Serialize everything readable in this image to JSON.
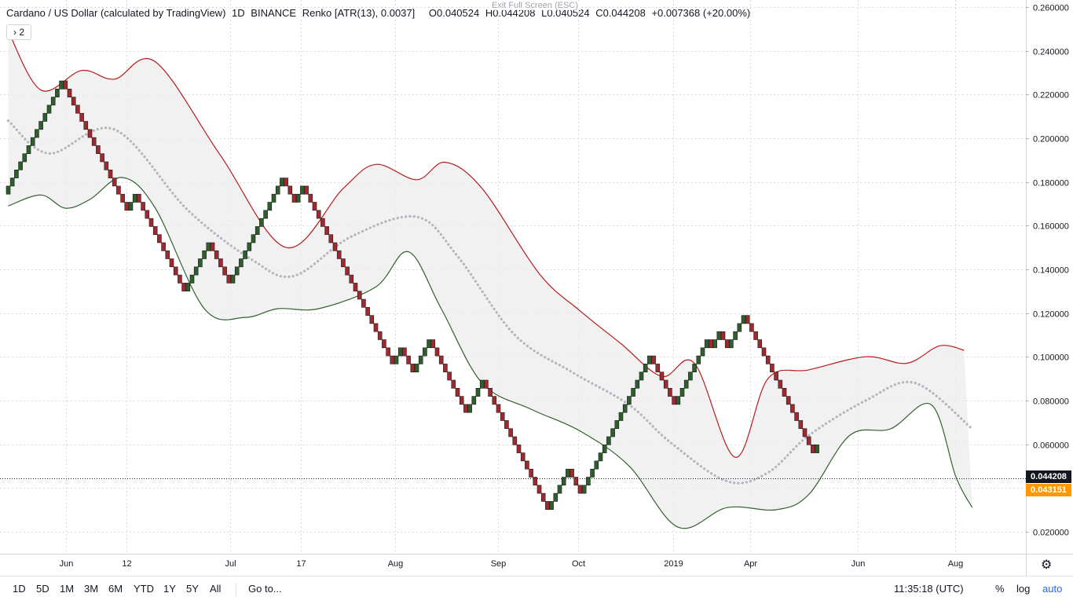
{
  "header": {
    "symbol": "Cardano / US Dollar (calculated by TradingView)",
    "interval": "1D",
    "exchange": "BINANCE",
    "chart_style": "Renko [ATR(13), 0.0037]",
    "open": "O0.040524",
    "high": "H0.044208",
    "low": "L0.040524",
    "close": "C0.044208",
    "change": "+0.007368 (+20.00%)",
    "fullscreen_hint": "Exit Full Screen (ESC)",
    "collapse_label": "› 2"
  },
  "bottom_toolbar": {
    "timeframes": [
      "1D",
      "5D",
      "1M",
      "3M",
      "6M",
      "YTD",
      "1Y",
      "5Y",
      "All"
    ],
    "goto_label": "Go to...",
    "clock": "11:35:18 (UTC)",
    "percent_label": "%",
    "log_label": "log",
    "auto_label": "auto"
  },
  "price_tags": {
    "last": "0.044208",
    "secondary": "0.043151"
  },
  "colors": {
    "up_brick": "#2e5e2c",
    "down_brick": "#a0282f",
    "upper_band": "#b71c1c",
    "lower_band": "#33602e",
    "basis_line": "#b2b5be",
    "band_fill": "#ececec",
    "last_price_tag": "#131722",
    "secondary_tag": "#ff9800",
    "accent": "#2962ff"
  },
  "chart_data": {
    "type": "renko",
    "brick_size": 0.0037,
    "ylim": [
      0.012,
      0.26
    ],
    "grid": true,
    "y_ticks": [
      "0.260000",
      "0.240000",
      "0.220000",
      "0.200000",
      "0.180000",
      "0.160000",
      "0.140000",
      "0.120000",
      "0.100000",
      "0.080000",
      "0.060000",
      "0.040000",
      "0.020000"
    ],
    "x_ticks": [
      "Jun",
      "12",
      "Jul",
      "17",
      "Aug",
      "Sep",
      "Oct",
      "2019",
      "Apr",
      "Jun",
      "Aug"
    ],
    "bricks_start": 0.1744,
    "brick_moves": [
      1,
      1,
      1,
      1,
      1,
      1,
      1,
      1,
      1,
      1,
      1,
      1,
      1,
      1,
      -1,
      -1,
      -1,
      -1,
      -1,
      -1,
      -1,
      -1,
      -1,
      -1,
      -1,
      -1,
      -1,
      -1,
      -1,
      -1,
      1,
      1,
      -1,
      -1,
      -1,
      -1,
      -1,
      -1,
      -1,
      -1,
      -1,
      -1,
      -1,
      -1,
      1,
      1,
      1,
      1,
      1,
      1,
      -1,
      -1,
      -1,
      -1,
      -1,
      1,
      1,
      1,
      1,
      1,
      1,
      1,
      1,
      1,
      1,
      1,
      1,
      1,
      -1,
      -1,
      -1,
      1,
      1,
      -1,
      -1,
      -1,
      -1,
      -1,
      -1,
      -1,
      -1,
      -1,
      -1,
      -1,
      -1,
      -1,
      -1,
      -1,
      -1,
      -1,
      -1,
      -1,
      -1,
      -1,
      -1,
      1,
      1,
      -1,
      -1,
      -1,
      1,
      1,
      1,
      1,
      -1,
      -1,
      -1,
      -1,
      -1,
      -1,
      -1,
      -1,
      -1,
      1,
      1,
      1,
      1,
      -1,
      -1,
      -1,
      -1,
      -1,
      -1,
      -1,
      -1,
      -1,
      -1,
      -1,
      -1,
      -1,
      -1,
      -1,
      -1,
      1,
      1,
      1,
      1,
      1,
      -1,
      -1,
      -1,
      1,
      1,
      1,
      1,
      1,
      1,
      1,
      1,
      1,
      1,
      1,
      1,
      1,
      1,
      1,
      1,
      1,
      -1,
      -1,
      -1,
      -1,
      -1,
      -1,
      1,
      1,
      1,
      1,
      1,
      1,
      1,
      1,
      -1,
      1,
      1,
      -1,
      -1,
      1,
      1,
      1,
      1,
      -1,
      -1,
      -1,
      -1,
      -1,
      -1,
      -1,
      -1,
      -1,
      -1,
      -1,
      -1,
      -1,
      -1,
      -1,
      -1,
      -1,
      1
    ],
    "bands": {
      "upper": [
        [
          0,
          0.249
        ],
        [
          8,
          0.222
        ],
        [
          18,
          0.231
        ],
        [
          26,
          0.227
        ],
        [
          36,
          0.235
        ],
        [
          52,
          0.192
        ],
        [
          68,
          0.15
        ],
        [
          82,
          0.177
        ],
        [
          90,
          0.188
        ],
        [
          100,
          0.181
        ],
        [
          107,
          0.189
        ],
        [
          116,
          0.177
        ],
        [
          130,
          0.138
        ],
        [
          140,
          0.121
        ],
        [
          150,
          0.106
        ],
        [
          160,
          0.091
        ],
        [
          168,
          0.097
        ],
        [
          178,
          0.054
        ],
        [
          186,
          0.09
        ],
        [
          196,
          0.094
        ],
        [
          210,
          0.1
        ],
        [
          220,
          0.097
        ],
        [
          228,
          0.105
        ],
        [
          234,
          0.103
        ]
      ],
      "lower": [
        [
          0,
          0.169
        ],
        [
          8,
          0.174
        ],
        [
          14,
          0.168
        ],
        [
          20,
          0.172
        ],
        [
          28,
          0.182
        ],
        [
          36,
          0.168
        ],
        [
          48,
          0.122
        ],
        [
          58,
          0.118
        ],
        [
          66,
          0.122
        ],
        [
          76,
          0.122
        ],
        [
          90,
          0.132
        ],
        [
          98,
          0.148
        ],
        [
          106,
          0.122
        ],
        [
          116,
          0.088
        ],
        [
          128,
          0.076
        ],
        [
          140,
          0.066
        ],
        [
          152,
          0.05
        ],
        [
          164,
          0.022
        ],
        [
          176,
          0.031
        ],
        [
          188,
          0.03
        ],
        [
          196,
          0.037
        ],
        [
          206,
          0.064
        ],
        [
          216,
          0.067
        ],
        [
          226,
          0.078
        ],
        [
          232,
          0.045
        ],
        [
          236,
          0.031
        ]
      ],
      "basis": [
        [
          0,
          0.208
        ],
        [
          10,
          0.193
        ],
        [
          26,
          0.204
        ],
        [
          44,
          0.167
        ],
        [
          60,
          0.144
        ],
        [
          70,
          0.137
        ],
        [
          84,
          0.155
        ],
        [
          100,
          0.164
        ],
        [
          110,
          0.146
        ],
        [
          124,
          0.11
        ],
        [
          138,
          0.093
        ],
        [
          152,
          0.078
        ],
        [
          162,
          0.061
        ],
        [
          176,
          0.043
        ],
        [
          186,
          0.047
        ],
        [
          196,
          0.064
        ],
        [
          210,
          0.08
        ],
        [
          222,
          0.088
        ],
        [
          236,
          0.067
        ]
      ]
    }
  }
}
